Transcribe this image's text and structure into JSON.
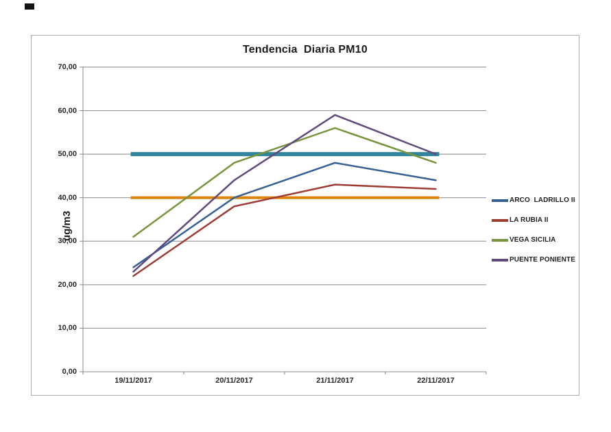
{
  "chart_data": {
    "type": "line",
    "title": "Tendencia  Diaria PM10",
    "ylabel": "ug/m3",
    "categories": [
      "19/11/2017",
      "20/11/2017",
      "21/11/2017",
      "22/11/2017"
    ],
    "series": [
      {
        "name": "ARCO  LADRILLO II",
        "color": "#366092",
        "values": [
          24,
          40,
          48,
          44
        ]
      },
      {
        "name": "LA RUBIA II",
        "color": "#9E3B33",
        "values": [
          22,
          38,
          43,
          42
        ]
      },
      {
        "name": "VEGA SICILIA",
        "color": "#77933C",
        "values": [
          31,
          48,
          56,
          48
        ]
      },
      {
        "name": "PUENTE PONIENTE",
        "color": "#604A7B",
        "values": [
          23,
          44,
          59,
          50
        ]
      }
    ],
    "reference_lines": [
      {
        "value": 50,
        "color": "#31849B",
        "width": 6
      },
      {
        "value": 40,
        "color": "#E0820E",
        "width": 4
      }
    ],
    "ylim": [
      0,
      70
    ],
    "ytick_step": 10,
    "ytick_labels": [
      "0,00",
      "10,00",
      "20,00",
      "30,00",
      "40,00",
      "50,00",
      "60,00",
      "70,00"
    ],
    "grid": true,
    "grid_color": "#878787",
    "axis_color": "#878787",
    "legend_position": "right"
  }
}
